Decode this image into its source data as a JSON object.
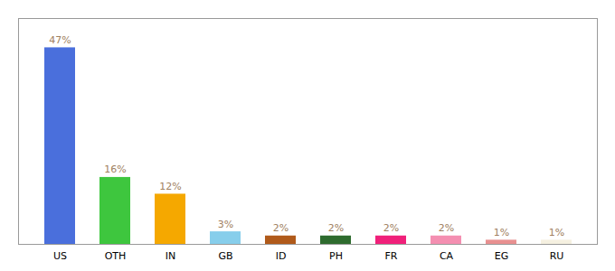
{
  "chart_data": {
    "type": "bar",
    "categories": [
      "US",
      "OTH",
      "IN",
      "GB",
      "ID",
      "PH",
      "FR",
      "CA",
      "EG",
      "RU"
    ],
    "values": [
      47,
      16,
      12,
      3,
      2,
      2,
      2,
      2,
      1,
      1
    ],
    "value_labels": [
      "47%",
      "16%",
      "12%",
      "3%",
      "2%",
      "2%",
      "2%",
      "2%",
      "1%",
      "1%"
    ],
    "colors": [
      "#4a6fdc",
      "#3ec63e",
      "#f5a800",
      "#87ceeb",
      "#b05a1a",
      "#2e6b2e",
      "#f0207a",
      "#f48fb1",
      "#e89090",
      "#f5f0e0"
    ],
    "ylim": [
      0,
      54
    ],
    "data_labels": true,
    "tick_labels": "x"
  }
}
